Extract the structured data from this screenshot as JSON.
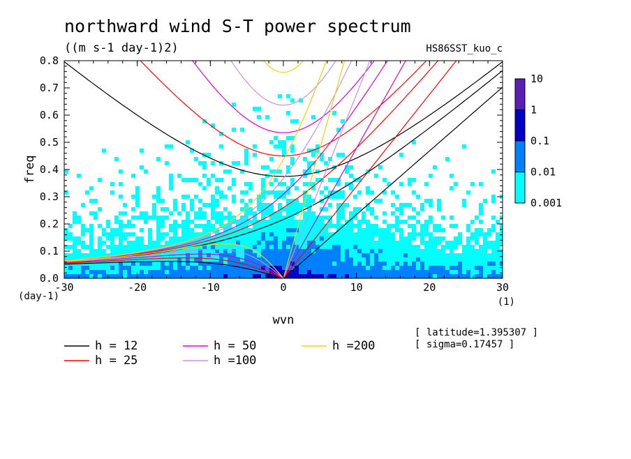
{
  "chart_data": {
    "type": "heatmap",
    "title": "northward wind S-T power spectrum",
    "units": "((m s-1 day-1)2)",
    "case_name": "HS86SST_kuo_c",
    "xlabel": "wvn",
    "ylabel": "freq",
    "x_unit": "(1)",
    "y_unit": "(day-1)",
    "xlim": [
      -30,
      30
    ],
    "ylim": [
      0,
      0.8
    ],
    "x_ticks": [
      -30,
      -20,
      -10,
      0,
      10,
      20,
      30
    ],
    "y_ticks": [
      0.0,
      0.1,
      0.2,
      0.3,
      0.4,
      0.5,
      0.6,
      0.7,
      0.8
    ],
    "x_tick_labels": [
      "-30",
      "-20",
      "-10",
      "0",
      "10",
      "20",
      "30"
    ],
    "y_tick_labels": [
      "0.0",
      "0.1",
      "0.2",
      "0.3",
      "0.4",
      "0.5",
      "0.6",
      "0.7",
      "0.8"
    ],
    "colorbar": {
      "labels": [
        "10",
        "1",
        "0.1",
        "0.01",
        "0.001"
      ],
      "levels": [
        0.001,
        0.01,
        0.1,
        1,
        10
      ],
      "colors": [
        "#00ffff",
        "#0080ff",
        "#0000c8",
        "#5a1fb4"
      ]
    },
    "dispersion_curves": [
      {
        "label": "h = 12",
        "h": 12,
        "color": "#000000"
      },
      {
        "label": "h = 25",
        "h": 25,
        "color": "#ff0000"
      },
      {
        "label": "h = 50",
        "h": 50,
        "color": "#e000c8"
      },
      {
        "label": "h =100",
        "h": 100,
        "color": "#c890e6"
      },
      {
        "label": "h =200",
        "h": 200,
        "color": "#f0d200"
      }
    ],
    "annotations": [
      "[ latitude=1.395307 ]",
      "[ sigma=0.17457 ]"
    ]
  }
}
